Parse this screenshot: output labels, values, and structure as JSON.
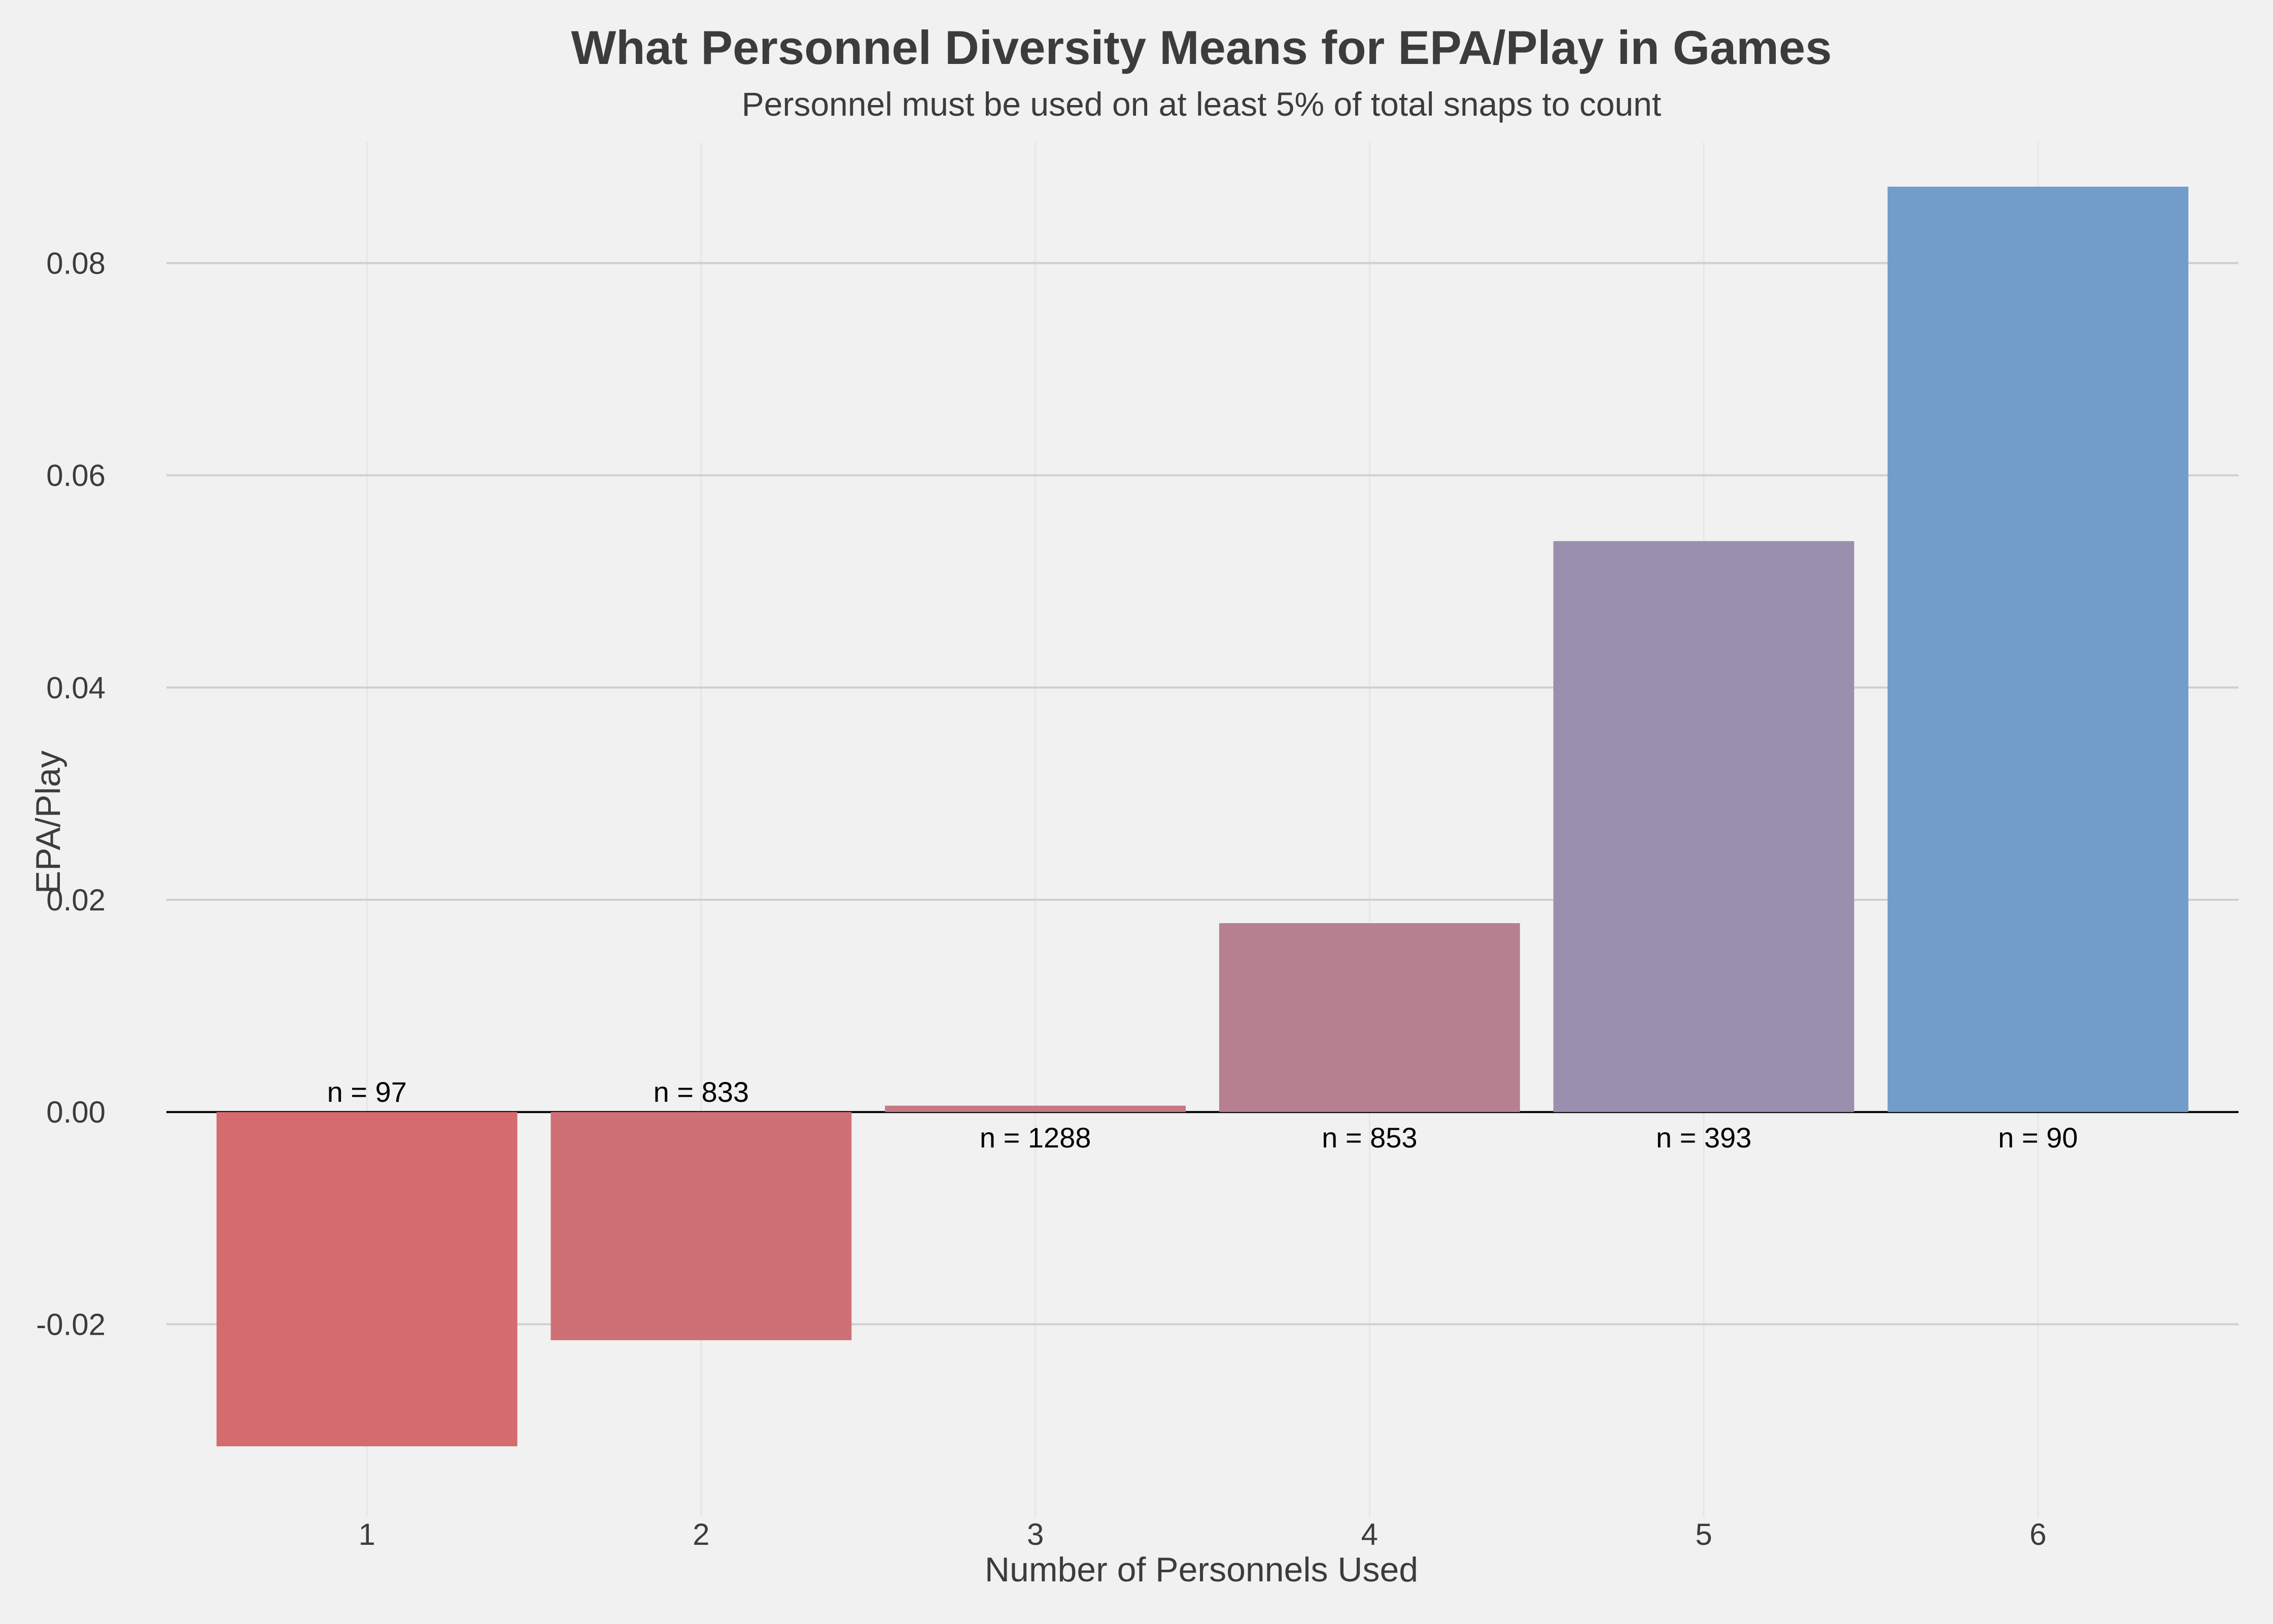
{
  "chart_data": {
    "type": "bar",
    "title": "What Personnel Diversity Means for EPA/Play in Games",
    "subtitle": "Personnel must be used on at least 5% of total snaps to count",
    "xlabel": "Number of Personnels Used",
    "ylabel": "EPA/Play",
    "categories": [
      "1",
      "2",
      "3",
      "4",
      "5",
      "6"
    ],
    "values": [
      -0.0315,
      -0.0215,
      0.0006,
      0.0178,
      0.0538,
      0.0872
    ],
    "counts": [
      "n = 97",
      "n = 833",
      "n = 1288",
      "n = 853",
      "n = 393",
      "n = 90"
    ],
    "bar_colors": [
      "#d46b6e",
      "#cf7076",
      "#c57a84",
      "#b68090",
      "#9a8fae",
      "#729cc9"
    ],
    "yticks": [
      "-0.02",
      "0.00",
      "0.02",
      "0.04",
      "0.06",
      "0.08"
    ],
    "ytick_values": [
      -0.02,
      0,
      0.02,
      0.04,
      0.06,
      0.08
    ],
    "ylim": [
      -0.0382,
      0.0914
    ],
    "grid": true,
    "legend": "none",
    "colors": {
      "background": "#f1f1f1",
      "grid": "#cfcfcf",
      "zero_line": "#000000",
      "text": "#3c3c3c"
    }
  }
}
